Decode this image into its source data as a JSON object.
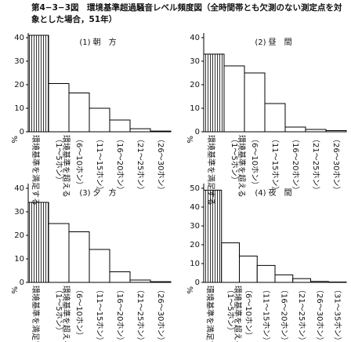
{
  "title": "第4−3−3図　環境基準超過騒音レベル頻度図（全時間帯とも欠測のない測定点を対象とした場合，51年）",
  "chart_data": [
    {
      "type": "bar",
      "title": "(1) 朝　方",
      "y_unit": "%",
      "x_group_label": "環境基準を超える",
      "categories": [
        "環境基準を満足する",
        "（1〜5ホン）",
        "（6〜10ホン）",
        "（11〜15ホン）",
        "（16〜20ホン）",
        "（21〜25ホン）",
        "（26〜30ホン）"
      ],
      "values": [
        41,
        20.5,
        16.5,
        10,
        5,
        1.3,
        0.3
      ],
      "ylim": [
        0,
        40
      ],
      "yticks": [
        0,
        10,
        20,
        30,
        40
      ],
      "color": "#ffffff",
      "edge_color": "#000000",
      "hatch_first_bar": true
    },
    {
      "type": "bar",
      "title": "(2) 昼　間",
      "y_unit": "%",
      "x_group_label": "環境基準を超える",
      "categories": [
        "環境基準を満足する",
        "（1〜5ホン）",
        "（6〜10ホン）",
        "（11〜15ホン）",
        "（16〜20ホン）",
        "（21〜25ホン）",
        "（26〜30ホン）"
      ],
      "values": [
        33,
        28,
        25,
        12,
        2,
        1,
        0.5
      ],
      "ylim": [
        0,
        40
      ],
      "yticks": [
        0,
        10,
        20,
        30,
        40
      ],
      "color": "#ffffff",
      "edge_color": "#000000",
      "hatch_first_bar": true
    },
    {
      "type": "bar",
      "title": "(3) 夕　方",
      "y_unit": "%",
      "x_group_label": "環境基準を超える",
      "categories": [
        "環境基準を満足する",
        "（1〜5ホン）",
        "（6〜10ホン）",
        "（11〜15ホン）",
        "（16〜20ホン）",
        "（21〜25ホン）",
        "（26〜30ホン）"
      ],
      "values": [
        34,
        25,
        21.5,
        14,
        4.5,
        1,
        0.3
      ],
      "ylim": [
        0,
        40
      ],
      "yticks": [
        0,
        10,
        20,
        30,
        40
      ],
      "color": "#ffffff",
      "edge_color": "#000000",
      "hatch_first_bar": true
    },
    {
      "type": "bar",
      "title": "(4) 夜　間",
      "y_unit": "%",
      "x_group_label": "環境基準を超える",
      "categories": [
        "環境基準を満足する",
        "（1〜5ホン）",
        "（6〜10ホン）",
        "（11〜15ホン）",
        "（16〜20ホン）",
        "（21〜25ホン）",
        "（26〜30ホン）",
        "（31〜35ホン）"
      ],
      "values": [
        49,
        21,
        14,
        9,
        4,
        2,
        0.5,
        0.2
      ],
      "ylim": [
        0,
        50
      ],
      "yticks": [
        0,
        10,
        20,
        30,
        40,
        50
      ],
      "color": "#ffffff",
      "edge_color": "#000000",
      "hatch_first_bar": true
    }
  ]
}
